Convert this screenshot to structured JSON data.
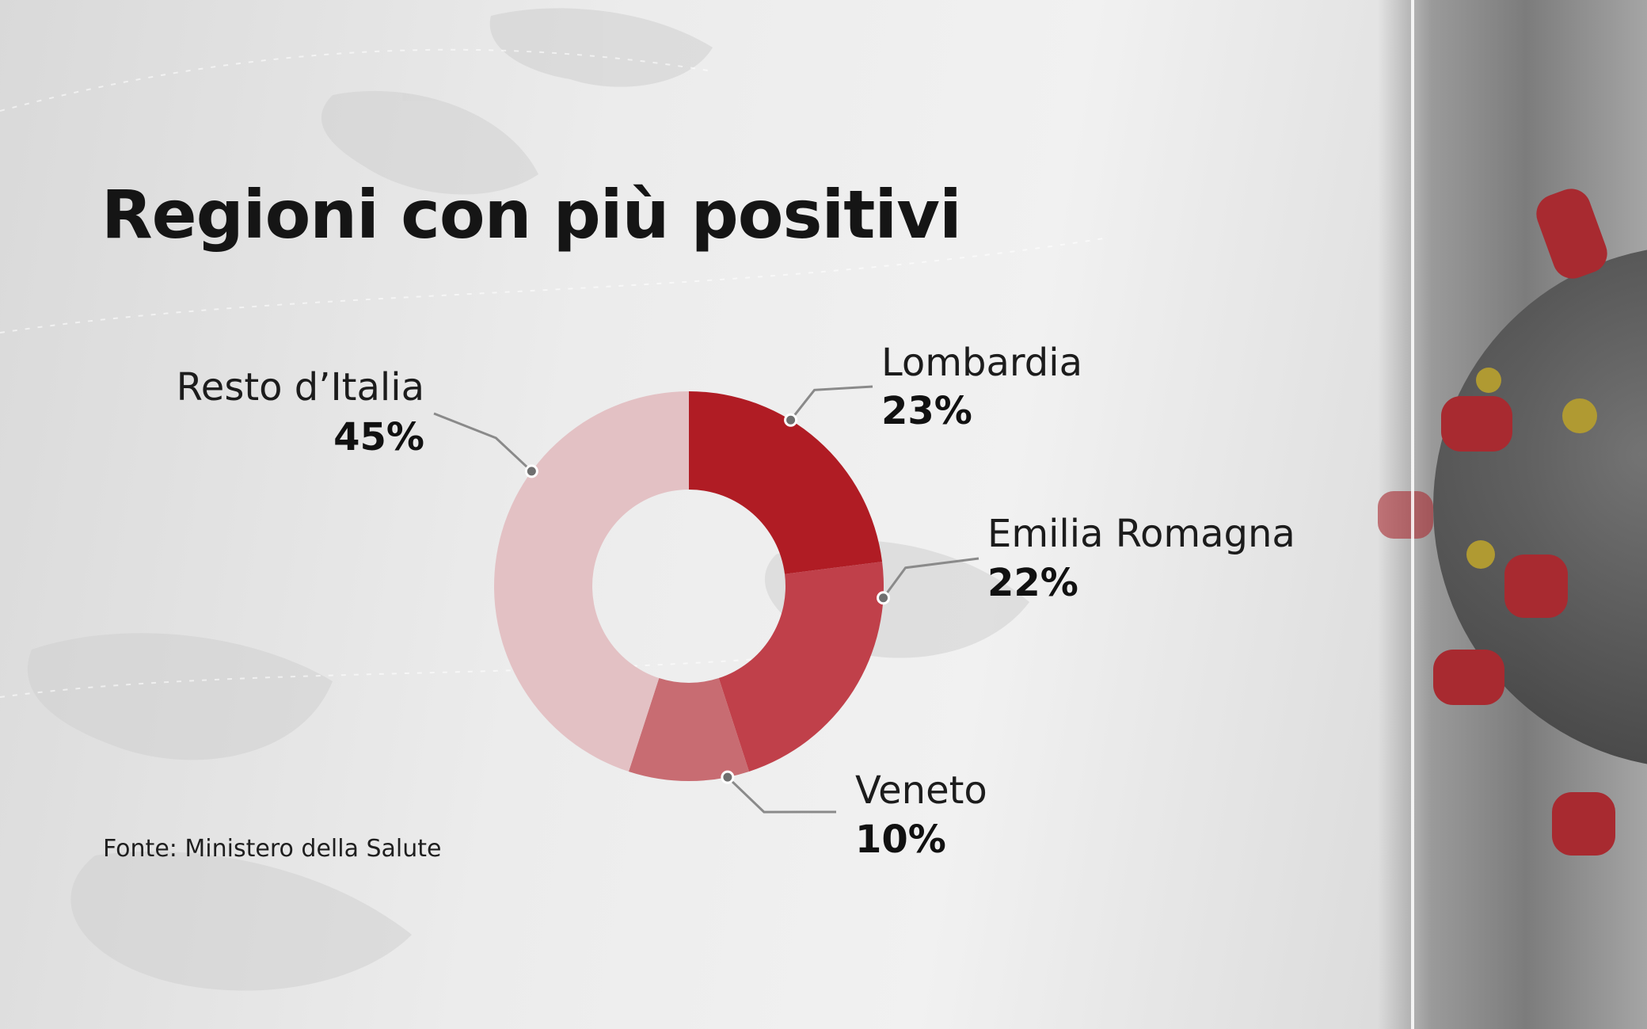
{
  "title": "Regioni con più positivi",
  "source": "Fonte: Ministero della Salute",
  "colors": {
    "lombardia": "#b01c24",
    "emilia": "#c0404a",
    "veneto": "#c86c72",
    "resto": "#e3c1c4",
    "leader": "#8a8a8a"
  },
  "chart_data": {
    "type": "pie",
    "donut": true,
    "title": "Regioni con più positivi",
    "slices": [
      {
        "label": "Lombardia",
        "value": 23,
        "display": "23%"
      },
      {
        "label": "Emilia Romagna",
        "value": 22,
        "display": "22%"
      },
      {
        "label": "Veneto",
        "value": 10,
        "display": "10%"
      },
      {
        "label": "Resto d’Italia",
        "value": 45,
        "display": "45%"
      }
    ]
  },
  "labels": {
    "lombardia": {
      "name": "Lombardia",
      "value": "23%"
    },
    "emilia": {
      "name": "Emilia Romagna",
      "value": "22%"
    },
    "veneto": {
      "name": "Veneto",
      "value": "10%"
    },
    "resto": {
      "name": "Resto d’Italia",
      "value": "45%"
    }
  }
}
